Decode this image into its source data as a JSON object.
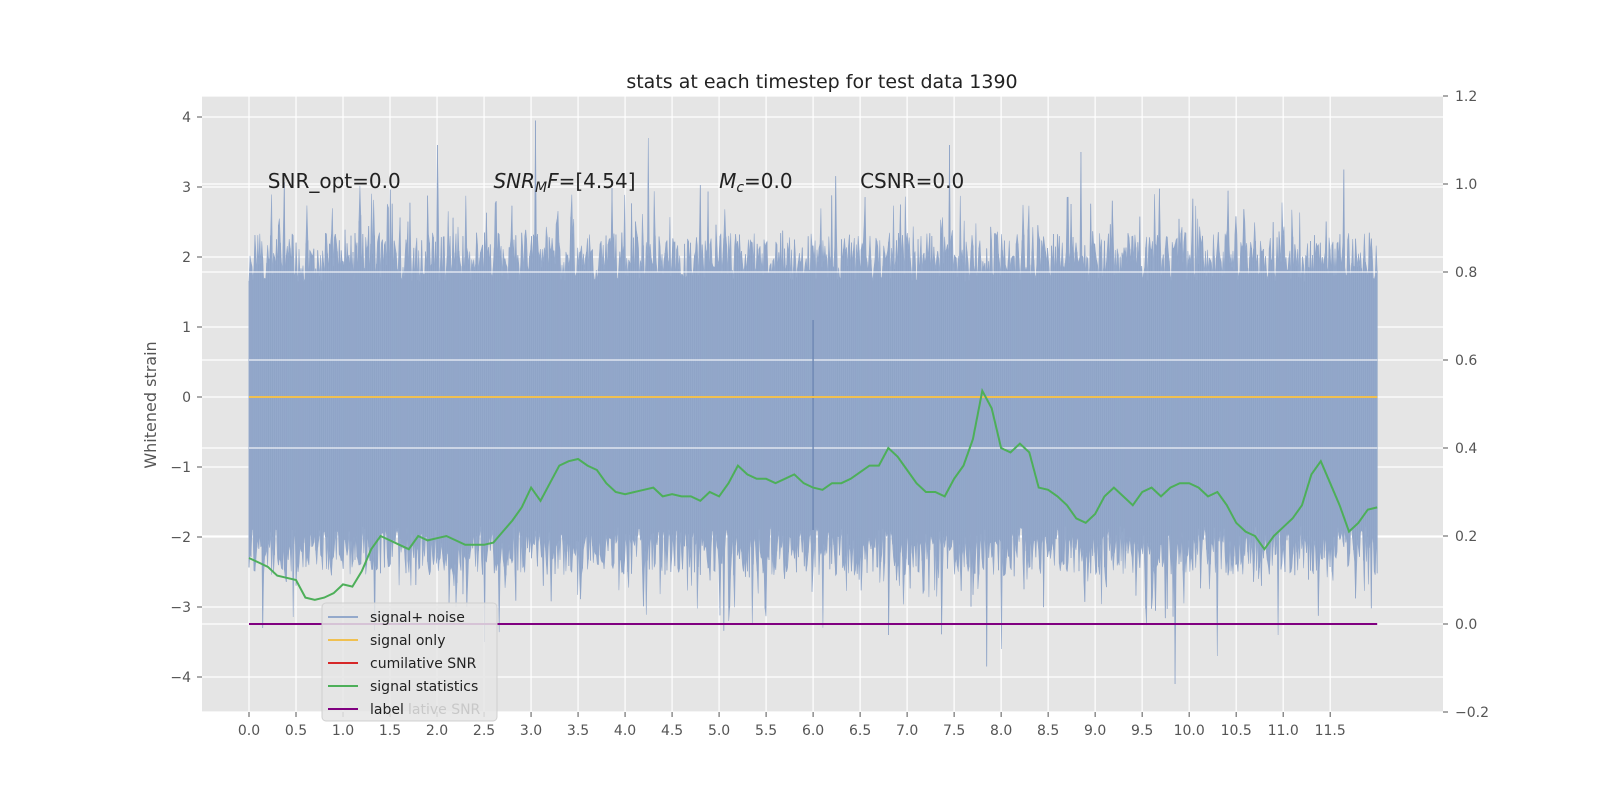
{
  "chart_data": {
    "type": "line",
    "title": "stats at each timestep for test data 1390",
    "ylabel": "Whitened strain",
    "xlabel": "",
    "xlim": [
      -0.5,
      12.7
    ],
    "ylim": [
      -4.5,
      4.3
    ],
    "y2lim": [
      -0.2,
      1.2
    ],
    "grid": true,
    "legend_position": "lower-left",
    "x_ticks": [
      "0.0",
      "0.5",
      "1.0",
      "1.5",
      "2.0",
      "2.5",
      "3.0",
      "3.5",
      "4.0",
      "4.5",
      "5.0",
      "5.5",
      "6.0",
      "6.5",
      "7.0",
      "7.5",
      "8.0",
      "8.5",
      "9.0",
      "9.5",
      "10.0",
      "10.5",
      "11.0",
      "11.5"
    ],
    "y_ticks": [
      4,
      3,
      2,
      1,
      0,
      -1,
      -2,
      -3,
      -4
    ],
    "y_tick_labels": [
      "4",
      "3",
      "2",
      "1",
      "0",
      "−1",
      "−2",
      "−3",
      "−4"
    ],
    "y2_ticks": [
      1.2,
      1.0,
      0.8,
      0.6,
      0.4,
      0.2,
      0.0,
      -0.2
    ],
    "y2_tick_labels": [
      "1.2",
      "1.0",
      "0.8",
      "0.6",
      "0.4",
      "0.2",
      "0.0",
      "−0.2"
    ],
    "annotations": [
      {
        "x": 0.2,
        "y": 3.1,
        "parts": [
          {
            "t": "SNR_opt=0.0"
          }
        ]
      },
      {
        "x": 2.6,
        "y": 3.1,
        "parts": [
          {
            "t": "SNR",
            "i": true
          },
          {
            "t": "M",
            "i": true,
            "sub": true
          },
          {
            "t": "F",
            "i": true
          },
          {
            "t": "=[4.54]"
          }
        ]
      },
      {
        "x": 5.0,
        "y": 3.1,
        "parts": [
          {
            "t": "M",
            "i": true
          },
          {
            "t": "c",
            "i": true,
            "sub": true
          },
          {
            "t": "=0.0"
          }
        ]
      },
      {
        "x": 6.5,
        "y": 3.1,
        "parts": [
          {
            "t": "CSNR=0.0"
          }
        ]
      }
    ],
    "series": [
      {
        "name": "signal+ noise",
        "color": "#94a9cb",
        "axis": "left",
        "x_range": [
          0.0,
          12.0
        ],
        "band": {
          "upper_mean": 2.0,
          "lower_mean": -2.2,
          "upper_max": 3.95,
          "lower_min": -4.1
        },
        "peaks": [
          [
            3.05,
            3.95
          ],
          [
            4.25,
            3.7
          ],
          [
            2.0,
            3.6
          ],
          [
            7.45,
            3.6
          ],
          [
            8.85,
            3.5
          ],
          [
            11.65,
            3.25
          ],
          [
            9.85,
            -4.1
          ],
          [
            7.85,
            -3.85
          ],
          [
            8.0,
            -3.6
          ],
          [
            10.3,
            -3.7
          ],
          [
            6.8,
            -3.4
          ],
          [
            10.95,
            -3.4
          ],
          [
            2.5,
            -3.5
          ],
          [
            0.15,
            -3.3
          ],
          [
            5.1,
            -3.2
          ]
        ],
        "spike": {
          "x": 6.0,
          "y": [
            -1.9,
            1.1
          ]
        }
      },
      {
        "name": "signal only",
        "color": "#f0c050",
        "axis": "left",
        "x": [
          0.0,
          12.0
        ],
        "y": [
          0.0,
          0.0
        ]
      },
      {
        "name": "cumilative SNR",
        "color": "#d62728",
        "axis": "right",
        "x": [],
        "y": []
      },
      {
        "name": "signal statistics",
        "color": "#4daf59",
        "axis": "right",
        "x": [
          0.0,
          0.1,
          0.2,
          0.3,
          0.4,
          0.5,
          0.6,
          0.7,
          0.8,
          0.9,
          1.0,
          1.1,
          1.2,
          1.3,
          1.4,
          1.5,
          1.6,
          1.7,
          1.8,
          1.9,
          2.0,
          2.1,
          2.2,
          2.3,
          2.4,
          2.5,
          2.6,
          2.7,
          2.8,
          2.9,
          3.0,
          3.1,
          3.2,
          3.3,
          3.4,
          3.5,
          3.6,
          3.7,
          3.8,
          3.9,
          4.0,
          4.1,
          4.2,
          4.3,
          4.4,
          4.5,
          4.6,
          4.7,
          4.8,
          4.9,
          5.0,
          5.1,
          5.2,
          5.3,
          5.4,
          5.5,
          5.6,
          5.7,
          5.8,
          5.9,
          6.0,
          6.1,
          6.2,
          6.3,
          6.4,
          6.5,
          6.6,
          6.7,
          6.8,
          6.9,
          7.0,
          7.1,
          7.2,
          7.3,
          7.4,
          7.5,
          7.6,
          7.7,
          7.8,
          7.9,
          8.0,
          8.1,
          8.2,
          8.3,
          8.4,
          8.5,
          8.6,
          8.7,
          8.8,
          8.9,
          9.0,
          9.1,
          9.2,
          9.3,
          9.4,
          9.5,
          9.6,
          9.7,
          9.8,
          9.9,
          10.0,
          10.1,
          10.2,
          10.3,
          10.4,
          10.5,
          10.6,
          10.7,
          10.8,
          10.9,
          11.0,
          11.1,
          11.2,
          11.3,
          11.4,
          11.5,
          11.6,
          11.7,
          11.8,
          11.9,
          12.0
        ],
        "y": [
          0.15,
          0.14,
          0.13,
          0.11,
          0.105,
          0.1,
          0.06,
          0.055,
          0.06,
          0.07,
          0.09,
          0.085,
          0.12,
          0.17,
          0.2,
          0.19,
          0.18,
          0.17,
          0.2,
          0.19,
          0.195,
          0.2,
          0.19,
          0.18,
          0.18,
          0.18,
          0.185,
          0.21,
          0.235,
          0.265,
          0.31,
          0.28,
          0.32,
          0.36,
          0.37,
          0.375,
          0.36,
          0.35,
          0.32,
          0.3,
          0.295,
          0.3,
          0.305,
          0.31,
          0.29,
          0.295,
          0.29,
          0.29,
          0.28,
          0.3,
          0.29,
          0.32,
          0.36,
          0.34,
          0.33,
          0.33,
          0.32,
          0.33,
          0.34,
          0.32,
          0.31,
          0.305,
          0.32,
          0.32,
          0.33,
          0.345,
          0.36,
          0.36,
          0.4,
          0.38,
          0.35,
          0.32,
          0.3,
          0.3,
          0.29,
          0.33,
          0.36,
          0.42,
          0.53,
          0.49,
          0.4,
          0.39,
          0.41,
          0.39,
          0.31,
          0.305,
          0.29,
          0.27,
          0.24,
          0.23,
          0.25,
          0.29,
          0.31,
          0.29,
          0.27,
          0.3,
          0.31,
          0.29,
          0.31,
          0.32,
          0.32,
          0.31,
          0.29,
          0.3,
          0.27,
          0.23,
          0.21,
          0.2,
          0.17,
          0.2,
          0.22,
          0.24,
          0.27,
          0.34,
          0.37,
          0.32,
          0.27,
          0.21,
          0.23,
          0.26,
          0.265
        ]
      },
      {
        "name": "label",
        "color": "#800080",
        "axis": "right",
        "x": [
          0.0,
          12.0
        ],
        "y": [
          0.0,
          0.0
        ]
      }
    ],
    "legend_ghost_text": "lative SNR"
  }
}
